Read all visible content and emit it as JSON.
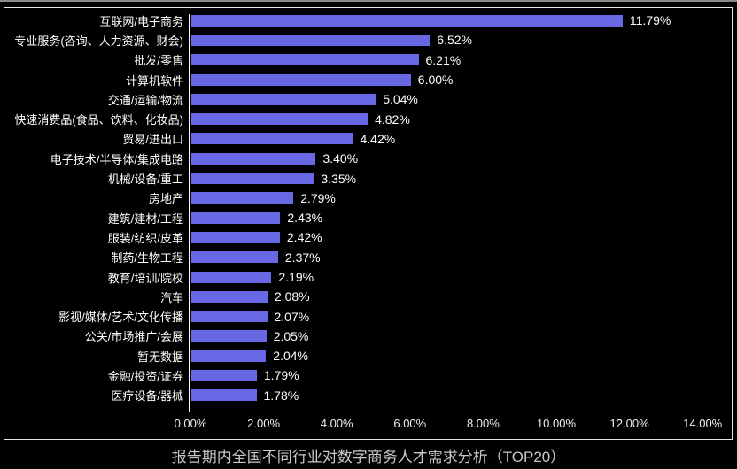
{
  "chart_data": {
    "type": "bar",
    "orientation": "horizontal",
    "title": "报告期内全国不同行业对数字商务人才需求分析（TOP20）",
    "categories": [
      "互联网/电子商务",
      "专业服务(咨询、人力资源、财会)",
      "批发/零售",
      "计算机软件",
      "交通/运输/物流",
      "快速消费品(食品、饮料、化妆品)",
      "贸易/进出口",
      "电子技术/半导体/集成电路",
      "机械/设备/重工",
      "房地产",
      "建筑/建材/工程",
      "服装/纺织/皮革",
      "制药/生物工程",
      "教育/培训/院校",
      "汽车",
      "影视/媒体/艺术/文化传播",
      "公关/市场推广/会展",
      "暂无数据",
      "金融/投资/证券",
      "医疗设备/器械"
    ],
    "values": [
      11.79,
      6.52,
      6.21,
      6.0,
      5.04,
      4.82,
      4.42,
      3.4,
      3.35,
      2.79,
      2.43,
      2.42,
      2.37,
      2.19,
      2.08,
      2.07,
      2.05,
      2.04,
      1.79,
      1.78
    ],
    "value_labels": [
      "11.79%",
      "6.52%",
      "6.21%",
      "6.00%",
      "5.04%",
      "4.82%",
      "4.42%",
      "3.40%",
      "3.35%",
      "2.79%",
      "2.43%",
      "2.42%",
      "2.37%",
      "2.19%",
      "2.08%",
      "2.07%",
      "2.05%",
      "2.04%",
      "1.79%",
      "1.78%"
    ],
    "xlabel": "",
    "ylabel": "",
    "xlim": [
      0,
      14
    ],
    "x_tick_values": [
      0,
      2,
      4,
      6,
      8,
      10,
      12,
      14
    ],
    "x_tick_labels": [
      "0.00%",
      "2.00%",
      "4.00%",
      "6.00%",
      "8.00%",
      "10.00%",
      "12.00%",
      "14.00%"
    ],
    "grid": "off",
    "legend": "none",
    "colors": {
      "background": "#000000",
      "bar": "#6968e4",
      "category_text": "#ffffff",
      "value_text": "#ffffff",
      "tick_text": "#f0f0f0",
      "title_text": "#c8c8c8",
      "frame_border": "#e6e6e6",
      "axis_line": "#ffffff"
    }
  }
}
